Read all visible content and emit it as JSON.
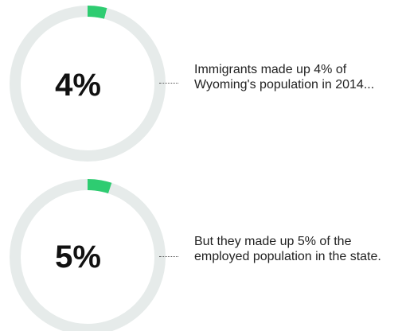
{
  "colors": {
    "accent": "#2ecc71",
    "track": "#e6ebea",
    "text": "#222222"
  },
  "chart_data": [
    {
      "type": "pie",
      "variant": "donut",
      "value_label": "4%",
      "values": [
        4,
        96
      ],
      "caption": "Immigrants made up 4% of Wyoming's population in 2014..."
    },
    {
      "type": "pie",
      "variant": "donut",
      "value_label": "5%",
      "values": [
        5,
        95
      ],
      "caption": "But they made up 5% of the employed population in the state."
    }
  ]
}
